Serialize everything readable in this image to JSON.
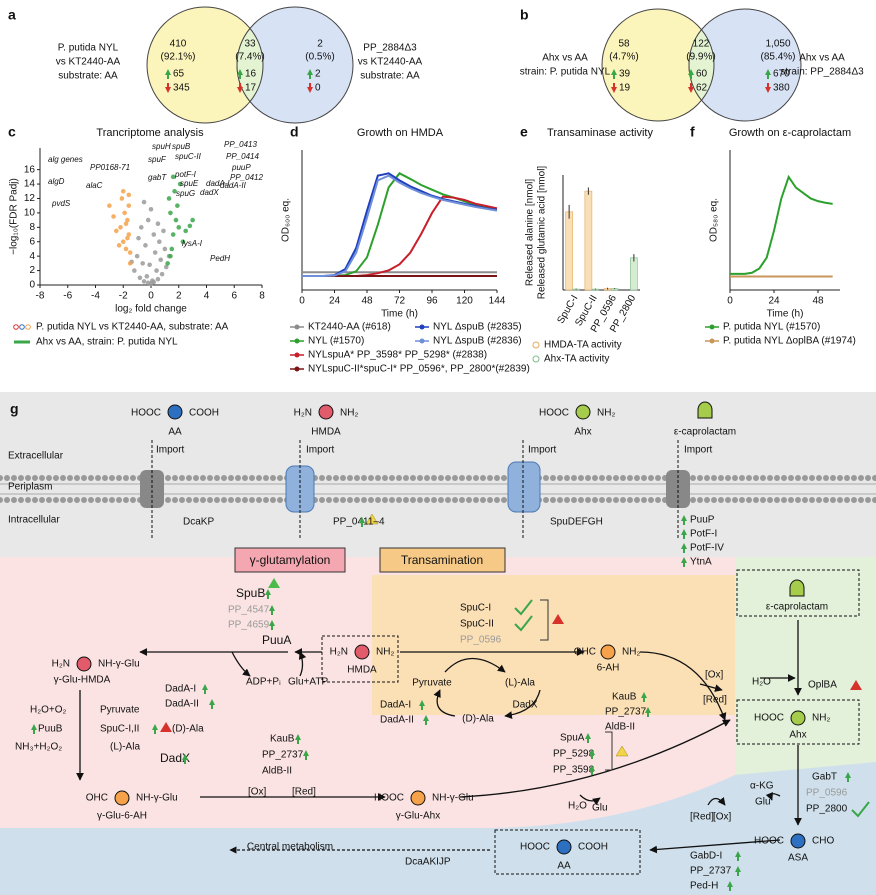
{
  "a": {
    "label": "a",
    "left": [
      "P. putida NYL",
      "vs KT2440-AA",
      "substrate: AA"
    ],
    "right": [
      "PP_2884Δ3",
      "vs KT2440-AA",
      "substrate: AA"
    ],
    "regions": [
      {
        "count": "410",
        "percent": "(92.1%)",
        "up": "65",
        "down": "345"
      },
      {
        "count": "33",
        "percent": "(7.4%)",
        "up": "16",
        "down": "17"
      },
      {
        "count": "2",
        "percent": "(0.5%)",
        "up": "2",
        "down": "0"
      }
    ]
  },
  "b": {
    "label": "b",
    "left": [
      "Ahx vs AA",
      "strain: P. putida NYL"
    ],
    "right": [
      "Ahx vs AA",
      "strain: PP_2884Δ3"
    ],
    "regions": [
      {
        "count": "58",
        "percent": "(4.7%)",
        "up": "39",
        "down": "19"
      },
      {
        "count": "122",
        "percent": "(9.9%)",
        "up": "60",
        "down": "62"
      },
      {
        "count": "1,050",
        "percent": "(85.4%)",
        "up": "670",
        "down": "380"
      }
    ]
  },
  "panel_labels": [
    "c",
    "d",
    "e",
    "f"
  ],
  "chart_data": [
    {
      "type": "scatter",
      "title": "Trancriptome analysis",
      "x_label": "log₂ fold change",
      "y_label": "−log₁₀(FDR Padj)",
      "xlim": [
        -8,
        8
      ],
      "xticks": [
        -8,
        -6,
        -4,
        -2,
        0,
        2,
        4,
        6,
        8
      ],
      "ylim": [
        0,
        19
      ],
      "yticks": [
        0,
        2,
        4,
        6,
        8,
        10,
        12,
        14,
        16
      ],
      "series": [
        {
          "color": "#9a9a9a",
          "x": [
            -1.2,
            -0.8,
            -0.5,
            -0.2,
            0,
            0.2,
            0.5,
            0.8,
            1.1,
            -1,
            -0.6,
            -0.3,
            0.1,
            0.4,
            0.7,
            1,
            -0.4,
            0.3,
            -0.1,
            0.6,
            -0.9,
            0.9,
            -1.4,
            1.3,
            -0.7,
            0.2,
            -0.2,
            0.5,
            0,
            -0.5
          ],
          "y": [
            2,
            1,
            0.5,
            0.3,
            0.2,
            0.4,
            0.8,
            1.5,
            2.5,
            4,
            3,
            1.2,
            0.6,
            2,
            3.5,
            5,
            5.5,
            4.5,
            2.8,
            6,
            6.5,
            7.5,
            3.2,
            4,
            8,
            7,
            9,
            8.5,
            10.5,
            11.5
          ]
        },
        {
          "name": "P. putida NYL vs KT2440-AA, substrate: AA",
          "color": "#f5a24b",
          "x": [
            -1.5,
            -1.8,
            -2,
            -1.6,
            -2.2,
            -1.7,
            -2.5,
            -1.9,
            -1.6,
            -2.1,
            -1.5,
            -2.3,
            -1.8,
            -2.7,
            -1.6,
            -2,
            -3,
            -1.7
          ],
          "y": [
            3,
            5,
            6,
            7,
            8,
            9,
            7.5,
            10,
            11,
            12,
            4.5,
            5.5,
            8.5,
            9.5,
            12.5,
            13,
            11,
            6.5
          ]
        },
        {
          "name": "Ahx vs AA, strain: P. putida NYL",
          "color": "#3aa64a",
          "x": [
            1.2,
            1.5,
            1.6,
            2,
            2.3,
            1.8,
            1.4,
            2.5,
            1.3,
            1.7,
            2.1,
            3,
            1.6,
            2.8,
            1.9,
            1.4
          ],
          "y": [
            3,
            5,
            7,
            8,
            6,
            9,
            10,
            7.5,
            12,
            13,
            14,
            9,
            15,
            8.2,
            11,
            4
          ]
        }
      ],
      "annotations": [
        {
          "text": "alg genes",
          "color": "#f5a24b"
        },
        {
          "text": "PP0168-71",
          "color": "#e0302a"
        },
        {
          "text": "algD",
          "color": "#f5a24b"
        },
        {
          "text": "alaC",
          "color": "#e0302a"
        },
        {
          "text": "pvdS",
          "color": "#f5a24b"
        },
        {
          "text": "spuH",
          "color": "#2a7fb0"
        },
        {
          "text": "spuB",
          "color": "#2a7fb0"
        },
        {
          "text": "PP_0413",
          "color": "#2a7fb0"
        },
        {
          "text": "spuC-II",
          "color": "#2a7fb0"
        },
        {
          "text": "PP_0414",
          "color": "#2a7fb0"
        },
        {
          "text": "spuF",
          "color": "#2a7fb0"
        },
        {
          "text": "puuP",
          "color": "#2a7fb0"
        },
        {
          "text": "potF-I",
          "color": "#3aa64a"
        },
        {
          "text": "PP_0412",
          "color": "#2a7fb0"
        },
        {
          "text": "gabT",
          "color": "#3aa64a"
        },
        {
          "text": "spuE",
          "color": "#2a7fb0"
        },
        {
          "text": "dadA-I",
          "color": "#3aa64a"
        },
        {
          "text": "dadX",
          "color": "#3aa64a"
        },
        {
          "text": "dadA-II",
          "color": "#3aa64a"
        },
        {
          "text": "spuG",
          "color": "#2a7fb0"
        },
        {
          "text": "lysA-I",
          "color": "#2a7fb0"
        },
        {
          "text": "PedH",
          "color": "#2a7fb0"
        }
      ]
    },
    {
      "type": "line",
      "title": "Growth on HMDA",
      "x_label": "Time (h)",
      "y_label": "OD₆₀₀ eq.",
      "xlim": [
        0,
        144
      ],
      "xticks": [
        0,
        24,
        48,
        72,
        96,
        120,
        144
      ],
      "ylim": [
        0,
        3
      ],
      "x": [
        0,
        8,
        16,
        24,
        32,
        40,
        48,
        56,
        64,
        72,
        80,
        88,
        96,
        104,
        112,
        120,
        128,
        136,
        144
      ],
      "series": [
        {
          "name": "KT2440-AA (#618)",
          "color": "#8c8c8c",
          "values": [
            0.38,
            0.38,
            0.38,
            0.38,
            0.38,
            0.38,
            0.38,
            0.38,
            0.38,
            0.38,
            0.38,
            0.38,
            0.38,
            0.38,
            0.38,
            0.38,
            0.38,
            0.38,
            0.38
          ]
        },
        {
          "name": "NYL (#1570)",
          "color": "#2ca02c",
          "values": [
            0.3,
            0.3,
            0.3,
            0.3,
            0.32,
            0.4,
            0.7,
            1.4,
            2.2,
            2.5,
            2.38,
            2.25,
            2.15,
            2.05,
            1.98,
            1.9,
            1.83,
            1.77,
            1.72
          ]
        },
        {
          "name": "NYLspuA* PP_3598* PP_5298* (#2838)",
          "color": "#c81e2a",
          "values": [
            0.3,
            0.3,
            0.3,
            0.3,
            0.3,
            0.3,
            0.32,
            0.36,
            0.42,
            0.55,
            0.8,
            1.2,
            1.65,
            2.0,
            1.98,
            1.93,
            1.85,
            1.8,
            1.75
          ]
        },
        {
          "name": "NYLspuC-II*spuC-I* PP_0596*, PP_2800*(#2839)",
          "color": "#7a1515",
          "values": [
            0.3,
            0.3,
            0.3,
            0.3,
            0.3,
            0.3,
            0.3,
            0.3,
            0.3,
            0.3,
            0.3,
            0.3,
            0.3,
            0.3,
            0.3,
            0.3,
            0.3,
            0.3,
            0.3
          ]
        },
        {
          "name": "NYL ΔspuB (#2835)",
          "color": "#1f3fbf",
          "values": [
            0.3,
            0.3,
            0.3,
            0.32,
            0.45,
            0.9,
            1.7,
            2.45,
            2.5,
            2.35,
            2.22,
            2.12,
            2.02,
            1.95,
            1.9,
            1.85,
            1.8,
            1.75,
            1.72
          ]
        },
        {
          "name": "NYL ΔspuB (#2836)",
          "color": "#6f8fd8",
          "values": [
            0.3,
            0.3,
            0.3,
            0.31,
            0.4,
            0.8,
            1.55,
            2.35,
            2.45,
            2.3,
            2.18,
            2.08,
            2.0,
            1.93,
            1.88,
            1.83,
            1.78,
            1.74,
            1.7
          ]
        }
      ]
    },
    {
      "type": "bar",
      "title": "Transaminase activity",
      "y_label": "Released alanine [nmol]",
      "y_label_2": "Released glutamic acid [nmol]",
      "categories": [
        "SpuC-I",
        "SpuC-II",
        "PP_0596",
        "PP_2800"
      ],
      "ylim": [
        0,
        25
      ],
      "series": [
        {
          "name": "HMDA-TA activity",
          "color": "#f9dfb5",
          "edge": "#e6a85c",
          "values": [
            17,
            21.5,
            0.3,
            0
          ],
          "errors": [
            1.5,
            0.8,
            0.2,
            0.1
          ]
        },
        {
          "name": "Ahx-TA activity",
          "color": "#d6ecd2",
          "edge": "#7fb98a",
          "values": [
            0.2,
            0.2,
            0.3,
            7
          ],
          "errors": [
            0.1,
            0.1,
            0.1,
            0.8
          ]
        }
      ]
    },
    {
      "type": "line",
      "title": "Growth on ε-caprolactam",
      "x_label": "Time (h)",
      "y_label": "OD₅₈₀ eq.",
      "xlim": [
        0,
        60
      ],
      "xticks": [
        0,
        24,
        48
      ],
      "ylim": [
        0,
        2.6
      ],
      "x": [
        0,
        4,
        8,
        12,
        16,
        20,
        24,
        28,
        32,
        36,
        40,
        44,
        48,
        52,
        56
      ],
      "series": [
        {
          "name": "P. putida NYL (#1570)",
          "color": "#2ca02c",
          "values": [
            0.3,
            0.3,
            0.3,
            0.32,
            0.4,
            0.6,
            1.1,
            1.7,
            2.1,
            1.9,
            1.8,
            1.7,
            1.65,
            1.62,
            1.6
          ]
        },
        {
          "name": "P. putida NYL ΔoplBA (#1974)",
          "color": "#c8965a",
          "values": [
            0.25,
            0.25,
            0.25,
            0.25,
            0.25,
            0.25,
            0.25,
            0.25,
            0.25,
            0.25,
            0.25,
            0.25,
            0.25,
            0.25,
            0.25
          ]
        }
      ]
    }
  ],
  "g": {
    "texts": [
      "g",
      "HOOC",
      "COOH",
      "AA",
      "H₂N",
      "NH₂",
      "HMDA",
      "HOOC",
      "NH₂",
      "Ahx",
      "ε-caprolactam",
      "Extracellular",
      "Periplasm",
      "Intracellular",
      "Import",
      "Import",
      "Import",
      "Import",
      "DcaKP",
      "PP_0411–4",
      "SpuDEFGH",
      "PuuP",
      "PotF-I",
      "PotF-IV",
      "YtnA",
      "γ-glutamylation",
      "Transamination",
      "SpuB",
      "PP_4547",
      "PP_4659",
      "PuuA",
      "H₂N",
      "NH-γ-Glu",
      "γ-Glu-HMDA",
      "ADP+Pᵢ",
      "Glu+ATP",
      "H₂N",
      "NH₂",
      "HMDA",
      "SpuC-I",
      "SpuC-II",
      "PP_0596",
      "OHC",
      "NH₂",
      "6-AH",
      "Pyruvate",
      "(L)-Ala",
      "DadX",
      "DadA-I",
      "DadA-II",
      "(D)-Ala",
      "KauB",
      "PP_2737",
      "AldB-II",
      "[Ox]",
      "[Red]",
      "DadA-I",
      "DadA-II",
      "H₂O+O₂",
      "Pyruvate",
      "PuuB",
      "SpuC-I,II",
      "(D)-Ala",
      "NH₃+H₂O₂",
      "(L)-Ala",
      "DadX",
      "KauB",
      "PP_2737",
      "AldB-II",
      "[Ox]",
      "[Red]",
      "OHC",
      "NH-γ-Glu",
      "γ-Glu-6-AH",
      "HOOC",
      "NH-γ-Glu",
      "γ-Glu-Ahx",
      "SpuA",
      "PP_5298",
      "PP_3598",
      "H₂O",
      "Glu",
      "ε-caprolactam",
      "H₂O",
      "OplBA",
      "HOOC",
      "NH₂",
      "Ahx",
      "α-KG",
      "Glu",
      "GabT",
      "PP_0596",
      "PP_2800",
      "HOOC",
      "CHO",
      "ASA",
      "[Red]",
      "[Ox]",
      "GabD-I",
      "PP_2737",
      "Ped-H",
      "Central metabolism",
      "DcaAKIJP",
      "HOOC",
      "COOH",
      "AA"
    ]
  }
}
